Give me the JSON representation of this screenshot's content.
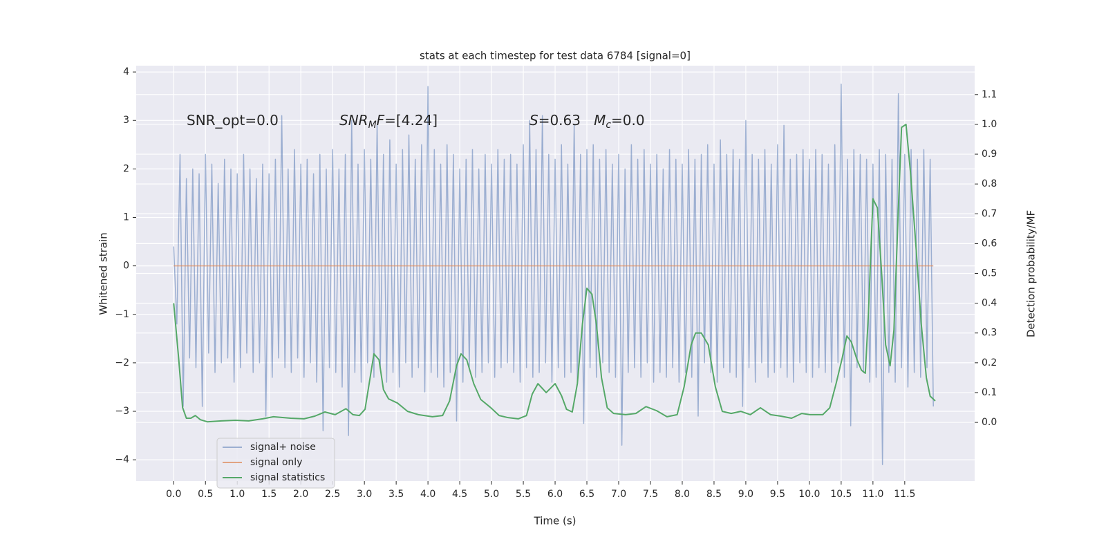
{
  "chart_data": {
    "type": "line",
    "title": "stats at each timestep for test data 6784 [signal=0]",
    "xlabel": "Time (s)",
    "ylabel": "Whitened strain",
    "y2label": "Detection probability/MF",
    "xlim": [
      -0.59,
      12.6
    ],
    "ylim": [
      -4.44,
      4.13
    ],
    "y2lim": [
      -0.197,
      1.197
    ],
    "xticks": [
      {
        "value": 0,
        "label": "0.0"
      },
      0.5,
      {
        "value": 1,
        "label": "1.0"
      },
      1.5,
      {
        "value": 2,
        "label": "2.0"
      },
      2.5,
      {
        "value": 3,
        "label": "3.0"
      },
      3.5,
      {
        "value": 4,
        "label": "4.0"
      },
      4.5,
      {
        "value": 5,
        "label": "5.0"
      },
      5.5,
      {
        "value": 6,
        "label": "6.0"
      },
      6.5,
      {
        "value": 7,
        "label": "7.0"
      },
      7.5,
      {
        "value": 8,
        "label": "8.0"
      },
      8.5,
      {
        "value": 9,
        "label": "9.0"
      },
      9.5,
      {
        "value": 10,
        "label": "10.0"
      },
      10.5,
      {
        "value": 11,
        "label": "11.0"
      },
      11.5
    ],
    "yticks": [
      {
        "value": -4,
        "label": "−4"
      },
      {
        "value": -3,
        "label": "−3"
      },
      {
        "value": -2,
        "label": "−2"
      },
      {
        "value": -1,
        "label": "−1"
      },
      0,
      1,
      2,
      3,
      4
    ],
    "y2ticks": [
      {
        "value": 0,
        "label": "0.0"
      },
      0.1,
      0.2,
      0.3,
      0.4,
      0.5,
      0.6,
      0.7,
      0.8,
      0.9,
      {
        "value": 1,
        "label": "1.0"
      },
      1.1
    ],
    "grid": true,
    "legend": "lower left",
    "annotations": [
      {
        "parts": [
          {
            "text": "SNR_opt=0.0",
            "style": "normal"
          }
        ]
      },
      {
        "parts": [
          {
            "text": "SNR",
            "style": "italic"
          },
          {
            "text": "M",
            "style": "sub"
          },
          {
            "text": "F",
            "style": "italic"
          },
          {
            "text": "=[4.24]",
            "style": "normal"
          }
        ]
      },
      {
        "parts": [
          {
            "text": "S",
            "style": "italic"
          },
          {
            "text": "=0.63   ",
            "style": "normal"
          },
          {
            "text": "M",
            "style": "italic"
          },
          {
            "text": "c",
            "style": "sub"
          },
          {
            "text": "=0.0",
            "style": "normal"
          }
        ]
      }
    ],
    "series": [
      {
        "name": "signal+ noise",
        "color": "#4c72b0",
        "opacity": 0.5,
        "x": [
          0,
          0.05,
          0.1,
          0.15,
          0.2,
          0.25,
          0.3,
          0.35,
          0.4,
          0.45,
          0.5,
          0.55,
          0.6,
          0.65,
          0.7,
          0.75,
          0.8,
          0.85,
          0.9,
          0.95,
          1,
          1.05,
          1.1,
          1.15,
          1.2,
          1.25,
          1.3,
          1.35,
          1.4,
          1.45,
          1.5,
          1.55,
          1.6,
          1.65,
          1.7,
          1.75,
          1.8,
          1.85,
          1.9,
          1.95,
          2,
          2.05,
          2.1,
          2.15,
          2.2,
          2.25,
          2.3,
          2.35,
          2.4,
          2.45,
          2.5,
          2.55,
          2.6,
          2.65,
          2.7,
          2.75,
          2.8,
          2.85,
          2.9,
          2.95,
          3,
          3.05,
          3.1,
          3.15,
          3.2,
          3.25,
          3.3,
          3.35,
          3.4,
          3.45,
          3.5,
          3.55,
          3.6,
          3.65,
          3.7,
          3.75,
          3.8,
          3.85,
          3.9,
          3.95,
          4,
          4.05,
          4.1,
          4.15,
          4.2,
          4.25,
          4.3,
          4.35,
          4.4,
          4.45,
          4.5,
          4.55,
          4.6,
          4.65,
          4.7,
          4.75,
          4.8,
          4.85,
          4.9,
          4.95,
          5,
          5.05,
          5.1,
          5.15,
          5.2,
          5.25,
          5.3,
          5.35,
          5.4,
          5.45,
          5.5,
          5.55,
          5.6,
          5.65,
          5.7,
          5.75,
          5.8,
          5.85,
          5.9,
          5.95,
          6,
          6.05,
          6.1,
          6.15,
          6.2,
          6.25,
          6.3,
          6.35,
          6.4,
          6.45,
          6.5,
          6.55,
          6.6,
          6.65,
          6.7,
          6.75,
          6.8,
          6.85,
          6.9,
          6.95,
          7,
          7.05,
          7.1,
          7.15,
          7.2,
          7.25,
          7.3,
          7.35,
          7.4,
          7.45,
          7.5,
          7.55,
          7.6,
          7.65,
          7.7,
          7.75,
          7.8,
          7.85,
          7.9,
          7.95,
          8,
          8.05,
          8.1,
          8.15,
          8.2,
          8.25,
          8.3,
          8.35,
          8.4,
          8.45,
          8.5,
          8.55,
          8.6,
          8.65,
          8.7,
          8.75,
          8.8,
          8.85,
          8.9,
          8.95,
          9,
          9.05,
          9.1,
          9.15,
          9.2,
          9.25,
          9.3,
          9.35,
          9.4,
          9.45,
          9.5,
          9.55,
          9.6,
          9.65,
          9.7,
          9.75,
          9.8,
          9.85,
          9.9,
          9.95,
          10,
          10.05,
          10.1,
          10.15,
          10.2,
          10.25,
          10.3,
          10.35,
          10.4,
          10.45,
          10.5,
          10.55,
          10.6,
          10.65,
          10.7,
          10.75,
          10.8,
          10.85,
          10.9,
          10.95,
          11,
          11.05,
          11.1,
          11.15,
          11.2,
          11.25,
          11.3,
          11.35,
          11.4,
          11.45,
          11.5,
          11.55,
          11.6,
          11.65,
          11.7,
          11.75,
          11.8,
          11.85,
          11.9,
          11.95
        ],
        "values": [
          0.4,
          -1.2,
          2.3,
          -2.9,
          1.8,
          -1.9,
          2.0,
          -2.1,
          1.9,
          -2.9,
          2.3,
          -1.8,
          2.1,
          -2.2,
          1.7,
          -2.0,
          2.2,
          -1.9,
          2.0,
          -2.4,
          1.9,
          -2.1,
          2.3,
          -1.8,
          2.0,
          -2.2,
          1.8,
          -2.0,
          2.1,
          -3.1,
          1.9,
          -2.3,
          2.2,
          -1.9,
          3.1,
          -2.1,
          2.0,
          -2.2,
          2.4,
          -1.9,
          2.1,
          -2.3,
          2.2,
          -2.0,
          1.9,
          -2.4,
          2.3,
          -3.4,
          2.0,
          -2.1,
          2.4,
          -2.2,
          2.0,
          -2.5,
          2.3,
          -3.5,
          3.0,
          -2.2,
          2.1,
          -2.4,
          2.4,
          -2.0,
          2.2,
          -2.3,
          2.9,
          -2.1,
          2.3,
          -2.4,
          2.6,
          -2.2,
          2.1,
          -2.5,
          2.4,
          -2.0,
          2.7,
          -2.3,
          2.2,
          -2.1,
          2.5,
          -2.6,
          3.7,
          -2.2,
          2.4,
          -2.3,
          2.1,
          -2.5,
          2.5,
          -2.2,
          2.3,
          -3.2,
          2.0,
          -2.4,
          2.2,
          -2.1,
          2.4,
          -2.3,
          2.0,
          -2.2,
          2.3,
          -2.0,
          2.1,
          -2.3,
          2.4,
          -2.1,
          2.2,
          -2.0,
          2.3,
          -2.2,
          2.1,
          -2.4,
          2.5,
          -2.1,
          3.0,
          -2.3,
          2.4,
          -2.2,
          3.1,
          -2.0,
          2.3,
          -2.4,
          2.2,
          -2.1,
          2.5,
          -2.3,
          2.1,
          -2.2,
          2.9,
          -2.4,
          2.3,
          -3.25,
          2.4,
          -2.1,
          2.5,
          -2.3,
          2.2,
          -2.0,
          2.4,
          -2.2,
          2.1,
          -2.3,
          2.3,
          -3.7,
          2.0,
          -2.2,
          2.5,
          -2.1,
          2.2,
          -2.3,
          2.4,
          -2.0,
          2.1,
          -2.4,
          2.3,
          -2.2,
          2.0,
          -2.3,
          2.4,
          -2.1,
          2.2,
          -2.4,
          2.1,
          -2.2,
          2.4,
          -2.3,
          2.2,
          -3.1,
          2.3,
          -2.0,
          2.5,
          -2.2,
          2.1,
          -2.4,
          2.6,
          -2.1,
          2.3,
          -2.2,
          2.4,
          -2.3,
          2.2,
          -2.9,
          3.0,
          -2.1,
          2.3,
          -2.4,
          2.2,
          -2.0,
          2.4,
          -2.3,
          2.1,
          -2.2,
          2.5,
          -2.1,
          2.9,
          -2.3,
          2.2,
          -2.4,
          2.3,
          -2.0,
          2.4,
          -2.2,
          2.2,
          -2.3,
          2.4,
          -2.1,
          2.3,
          -2.2,
          2.1,
          -2.4,
          2.5,
          -2.0,
          3.75,
          -2.3,
          2.2,
          -3.3,
          2.4,
          -2.1,
          2.3,
          -2.2,
          2.2,
          -2.4,
          2.1,
          -2.3,
          2.4,
          -4.1,
          2.3,
          -2.2,
          2.2,
          -2.4,
          3.55,
          -2.1,
          2.3,
          -2.5,
          2.4,
          -2.2,
          2.2,
          -2.3,
          2.4,
          -2.1,
          2.2,
          -2.9
        ]
      },
      {
        "name": "signal only",
        "color": "#dd8452",
        "opacity": 0.7,
        "x": [
          0,
          11.95
        ],
        "values": [
          0,
          0
        ]
      },
      {
        "name": "signal statistics",
        "color": "#55a868",
        "opacity": 1,
        "axis": "y2",
        "x": [
          0,
          0.08,
          0.14,
          0.2,
          0.27,
          0.34,
          0.42,
          0.53,
          0.75,
          0.97,
          1.18,
          1.4,
          1.57,
          1.84,
          2.05,
          2.22,
          2.38,
          2.54,
          2.71,
          2.82,
          2.92,
          3.01,
          3.09,
          3.15,
          3.23,
          3.3,
          3.38,
          3.52,
          3.68,
          3.85,
          4.07,
          4.23,
          4.34,
          4.45,
          4.52,
          4.61,
          4.72,
          4.83,
          4.99,
          5.12,
          5.26,
          5.42,
          5.55,
          5.64,
          5.73,
          5.86,
          6.0,
          6.1,
          6.18,
          6.27,
          6.35,
          6.43,
          6.5,
          6.58,
          6.65,
          6.73,
          6.82,
          6.92,
          7.11,
          7.27,
          7.43,
          7.6,
          7.76,
          7.92,
          8.03,
          8.14,
          8.21,
          8.3,
          8.41,
          8.52,
          8.63,
          8.77,
          8.92,
          9.07,
          9.23,
          9.39,
          9.55,
          9.72,
          9.88,
          10.01,
          10.21,
          10.32,
          10.42,
          10.51,
          10.59,
          10.66,
          10.75,
          10.82,
          10.88,
          10.93,
          11.0,
          11.07,
          11.14,
          11.2,
          11.27,
          11.33,
          11.4,
          11.45,
          11.52,
          11.59,
          11.68,
          11.76,
          11.84,
          11.9,
          11.98
        ],
        "values": [
          0.4,
          0.21,
          0.05,
          0.014,
          0.014,
          0.023,
          0.009,
          0.002,
          0.005,
          0.007,
          0.005,
          0.012,
          0.019,
          0.014,
          0.012,
          0.021,
          0.035,
          0.026,
          0.046,
          0.026,
          0.023,
          0.044,
          0.15,
          0.23,
          0.21,
          0.11,
          0.079,
          0.065,
          0.037,
          0.026,
          0.019,
          0.023,
          0.072,
          0.19,
          0.23,
          0.21,
          0.13,
          0.077,
          0.049,
          0.023,
          0.016,
          0.012,
          0.023,
          0.095,
          0.13,
          0.1,
          0.13,
          0.09,
          0.044,
          0.035,
          0.13,
          0.33,
          0.45,
          0.43,
          0.33,
          0.15,
          0.049,
          0.03,
          0.026,
          0.03,
          0.053,
          0.039,
          0.019,
          0.026,
          0.12,
          0.26,
          0.3,
          0.3,
          0.26,
          0.12,
          0.037,
          0.03,
          0.037,
          0.026,
          0.049,
          0.026,
          0.021,
          0.014,
          0.03,
          0.026,
          0.026,
          0.049,
          0.13,
          0.21,
          0.29,
          0.27,
          0.21,
          0.175,
          0.165,
          0.37,
          0.75,
          0.72,
          0.49,
          0.26,
          0.19,
          0.31,
          0.72,
          0.99,
          1.0,
          0.84,
          0.58,
          0.33,
          0.15,
          0.088,
          0.072
        ]
      }
    ]
  }
}
